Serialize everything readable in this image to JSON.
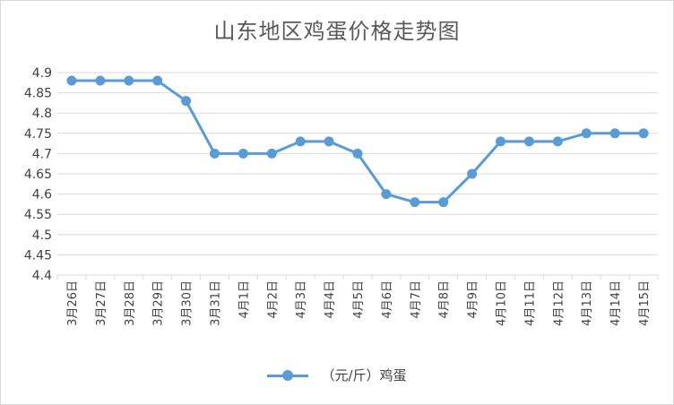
{
  "chart_data": {
    "type": "line",
    "title": "山东地区鸡蛋价格走势图",
    "categories": [
      "3月26日",
      "3月27日",
      "3月28日",
      "3月29日",
      "3月30日",
      "3月31日",
      "4月1日",
      "4月2日",
      "4月3日",
      "4月4日",
      "4月5日",
      "4月6日",
      "4月7日",
      "4月8日",
      "4月9日",
      "4月10日",
      "4月11日",
      "4月12日",
      "4月13日",
      "4月14日",
      "4月15日"
    ],
    "series": [
      {
        "name": "（元/斤）鸡蛋",
        "color": "#5b9bd5",
        "values": [
          4.88,
          4.88,
          4.88,
          4.88,
          4.83,
          4.7,
          4.7,
          4.7,
          4.73,
          4.73,
          4.7,
          4.6,
          4.58,
          4.58,
          4.65,
          4.73,
          4.73,
          4.73,
          4.75,
          4.75,
          4.75
        ]
      }
    ],
    "ylim": [
      4.4,
      4.9
    ],
    "yticks": [
      "4.4",
      "4.45",
      "4.5",
      "4.55",
      "4.6",
      "4.65",
      "4.7",
      "4.75",
      "4.8",
      "4.85",
      "4.9"
    ],
    "grid": true,
    "legend_position": "bottom"
  }
}
